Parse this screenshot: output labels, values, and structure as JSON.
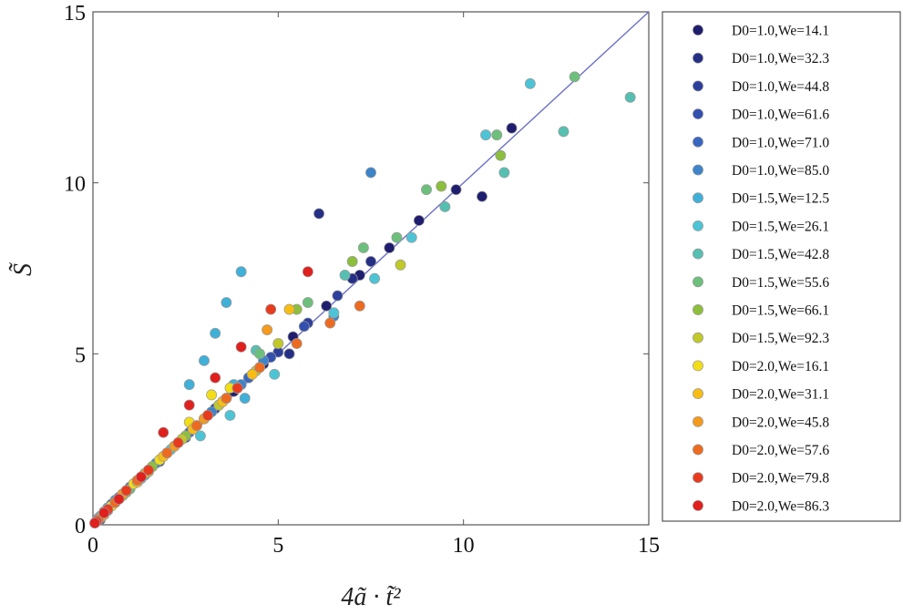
{
  "chart_data": {
    "type": "scatter",
    "title": "",
    "xlabel": "4ã · t̃²",
    "ylabel": "S̃",
    "xlim": [
      0,
      15
    ],
    "ylim": [
      0,
      15
    ],
    "xticks": [
      "0",
      "5",
      "10",
      "15"
    ],
    "yticks": [
      "0",
      "5",
      "10",
      "15"
    ],
    "grid": false,
    "legend_position": "right-outside",
    "reference_line": {
      "x": [
        0,
        15
      ],
      "y": [
        0,
        15
      ],
      "color": "#6a6fc8"
    },
    "series": [
      {
        "name": "D0=1.0,We=14.1",
        "color": "#1f1d6e",
        "x": [
          0.1,
          0.3,
          0.6,
          1.0,
          1.5,
          2.2,
          3.0,
          3.8,
          4.6,
          5.4,
          6.3,
          7.2,
          8.0,
          8.8,
          9.8,
          10.5,
          11.3
        ],
        "y": [
          0.12,
          0.38,
          0.72,
          1.1,
          1.6,
          2.3,
          3.1,
          3.9,
          4.7,
          5.5,
          6.4,
          7.3,
          8.1,
          8.9,
          9.8,
          9.6,
          11.6
        ]
      },
      {
        "name": "D0=1.0,We=32.3",
        "color": "#252f86",
        "x": [
          0.2,
          0.5,
          0.9,
          1.4,
          2.0,
          2.8,
          3.6,
          4.5,
          5.3,
          6.1,
          7.0,
          7.5
        ],
        "y": [
          0.15,
          0.55,
          0.95,
          1.5,
          2.1,
          2.9,
          3.7,
          4.6,
          5.0,
          9.1,
          7.2,
          7.7
        ]
      },
      {
        "name": "D0=1.0,We=44.8",
        "color": "#2e3f9b",
        "x": [
          0.1,
          0.4,
          0.8,
          1.2,
          1.8,
          2.5,
          3.3,
          4.2,
          5.0,
          5.8,
          6.6
        ],
        "y": [
          0.1,
          0.42,
          0.9,
          1.25,
          1.85,
          2.55,
          3.4,
          4.3,
          5.05,
          5.9,
          6.7
        ]
      },
      {
        "name": "D0=1.0,We=61.6",
        "color": "#3350ae",
        "x": [
          0.15,
          0.5,
          1.0,
          1.6,
          2.3,
          3.1,
          3.9,
          4.8,
          5.7
        ],
        "y": [
          0.2,
          0.6,
          1.1,
          1.7,
          2.4,
          3.2,
          4.0,
          4.9,
          5.8
        ]
      },
      {
        "name": "D0=1.0,We=71.0",
        "color": "#3966bf",
        "x": [
          0.3,
          0.7,
          1.3,
          1.9,
          2.6,
          3.4,
          4.2
        ],
        "y": [
          0.35,
          0.8,
          1.4,
          2.0,
          2.7,
          3.5,
          4.3
        ]
      },
      {
        "name": "D0=1.0,We=85.0",
        "color": "#3d84c9",
        "x": [
          0.2,
          0.6,
          1.1,
          1.7,
          2.4,
          3.2,
          4.0,
          7.5,
          6.5,
          4.6
        ],
        "y": [
          0.25,
          0.7,
          1.2,
          1.8,
          2.5,
          3.3,
          4.1,
          10.3,
          6.1,
          4.8
        ]
      },
      {
        "name": "D0=1.5,We=12.5",
        "color": "#3fb0d8",
        "x": [
          0.1,
          0.4,
          0.9,
          1.5,
          2.2,
          2.6,
          3.0,
          3.3,
          3.6,
          4.0,
          4.1,
          3.8
        ],
        "y": [
          0.1,
          0.5,
          1.0,
          1.6,
          2.3,
          4.1,
          4.8,
          5.6,
          6.5,
          7.4,
          3.7,
          4.1
        ]
      },
      {
        "name": "D0=1.5,We=26.1",
        "color": "#4dc4d6",
        "x": [
          0.3,
          0.8,
          1.4,
          2.1,
          2.9,
          3.7,
          4.9,
          6.5,
          7.6,
          8.6,
          10.6,
          11.8
        ],
        "y": [
          0.3,
          0.85,
          1.45,
          2.2,
          2.6,
          3.2,
          4.4,
          6.2,
          7.2,
          8.4,
          11.4,
          12.9
        ]
      },
      {
        "name": "D0=1.5,We=42.8",
        "color": "#55c0b2",
        "x": [
          0.2,
          0.7,
          1.3,
          2.0,
          2.8,
          4.4,
          6.8,
          9.5,
          11.1,
          12.7,
          14.5
        ],
        "y": [
          0.25,
          0.75,
          1.35,
          2.1,
          2.9,
          5.1,
          7.3,
          9.3,
          10.3,
          11.5,
          12.5
        ]
      },
      {
        "name": "D0=1.5,We=55.6",
        "color": "#6cc07c",
        "x": [
          0.4,
          1.0,
          1.8,
          2.7,
          4.5,
          5.8,
          7.3,
          8.2,
          9.0,
          10.9,
          13.0
        ],
        "y": [
          0.45,
          1.05,
          1.9,
          2.8,
          5.0,
          6.5,
          8.1,
          8.4,
          9.8,
          11.4,
          13.1
        ]
      },
      {
        "name": "D0=1.5,We=66.1",
        "color": "#8cbf3c",
        "x": [
          0.3,
          0.9,
          1.6,
          2.5,
          3.5,
          5.5,
          7.0,
          9.4,
          11.0
        ],
        "y": [
          0.3,
          0.95,
          1.7,
          2.6,
          3.6,
          6.3,
          7.7,
          9.9,
          10.8
        ]
      },
      {
        "name": "D0=1.5,We=92.3",
        "color": "#c0c928",
        "x": [
          0.2,
          0.8,
          1.5,
          2.4,
          3.4,
          4.4,
          5.0,
          8.3
        ],
        "y": [
          0.2,
          0.85,
          1.55,
          2.5,
          3.5,
          4.5,
          5.3,
          7.6
        ]
      },
      {
        "name": "D0=2.0,We=16.1",
        "color": "#f2dd16",
        "x": [
          0.1,
          0.5,
          1.1,
          1.8,
          2.6,
          3.2,
          3.7
        ],
        "y": [
          0.12,
          0.55,
          1.2,
          1.9,
          3.0,
          3.8,
          4.0
        ]
      },
      {
        "name": "D0=2.0,We=31.1",
        "color": "#f7bd13",
        "x": [
          0.2,
          0.6,
          1.2,
          1.9,
          2.7,
          3.5,
          4.3,
          5.3
        ],
        "y": [
          0.2,
          0.65,
          1.25,
          2.0,
          2.8,
          3.6,
          4.4,
          6.3
        ]
      },
      {
        "name": "D0=2.0,We=45.8",
        "color": "#f59a1a",
        "x": [
          0.3,
          0.8,
          1.4,
          2.2,
          3.0,
          3.9,
          4.7
        ],
        "y": [
          0.3,
          0.9,
          1.5,
          2.3,
          3.1,
          4.0,
          5.7
        ]
      },
      {
        "name": "D0=2.0,We=57.6",
        "color": "#ed6b20",
        "x": [
          0.15,
          0.6,
          1.2,
          2.0,
          2.8,
          3.6,
          4.5,
          5.5,
          6.4,
          7.2
        ],
        "y": [
          0.15,
          0.65,
          1.3,
          2.1,
          2.9,
          3.7,
          4.6,
          5.3,
          5.9,
          6.4
        ]
      },
      {
        "name": "D0=2.0,We=79.8",
        "color": "#e83b1e",
        "x": [
          0.1,
          0.4,
          0.9,
          1.5,
          2.3,
          3.1,
          3.9,
          4.8
        ],
        "y": [
          0.1,
          0.45,
          1.0,
          1.6,
          2.4,
          3.2,
          4.0,
          6.3
        ]
      },
      {
        "name": "D0=2.0,We=86.3",
        "color": "#e11f1c",
        "x": [
          0.05,
          0.3,
          0.7,
          1.3,
          1.9,
          2.6,
          3.3,
          4.0,
          5.8
        ],
        "y": [
          0.05,
          0.35,
          0.75,
          1.4,
          2.7,
          3.5,
          4.3,
          5.2,
          7.4
        ]
      }
    ]
  }
}
